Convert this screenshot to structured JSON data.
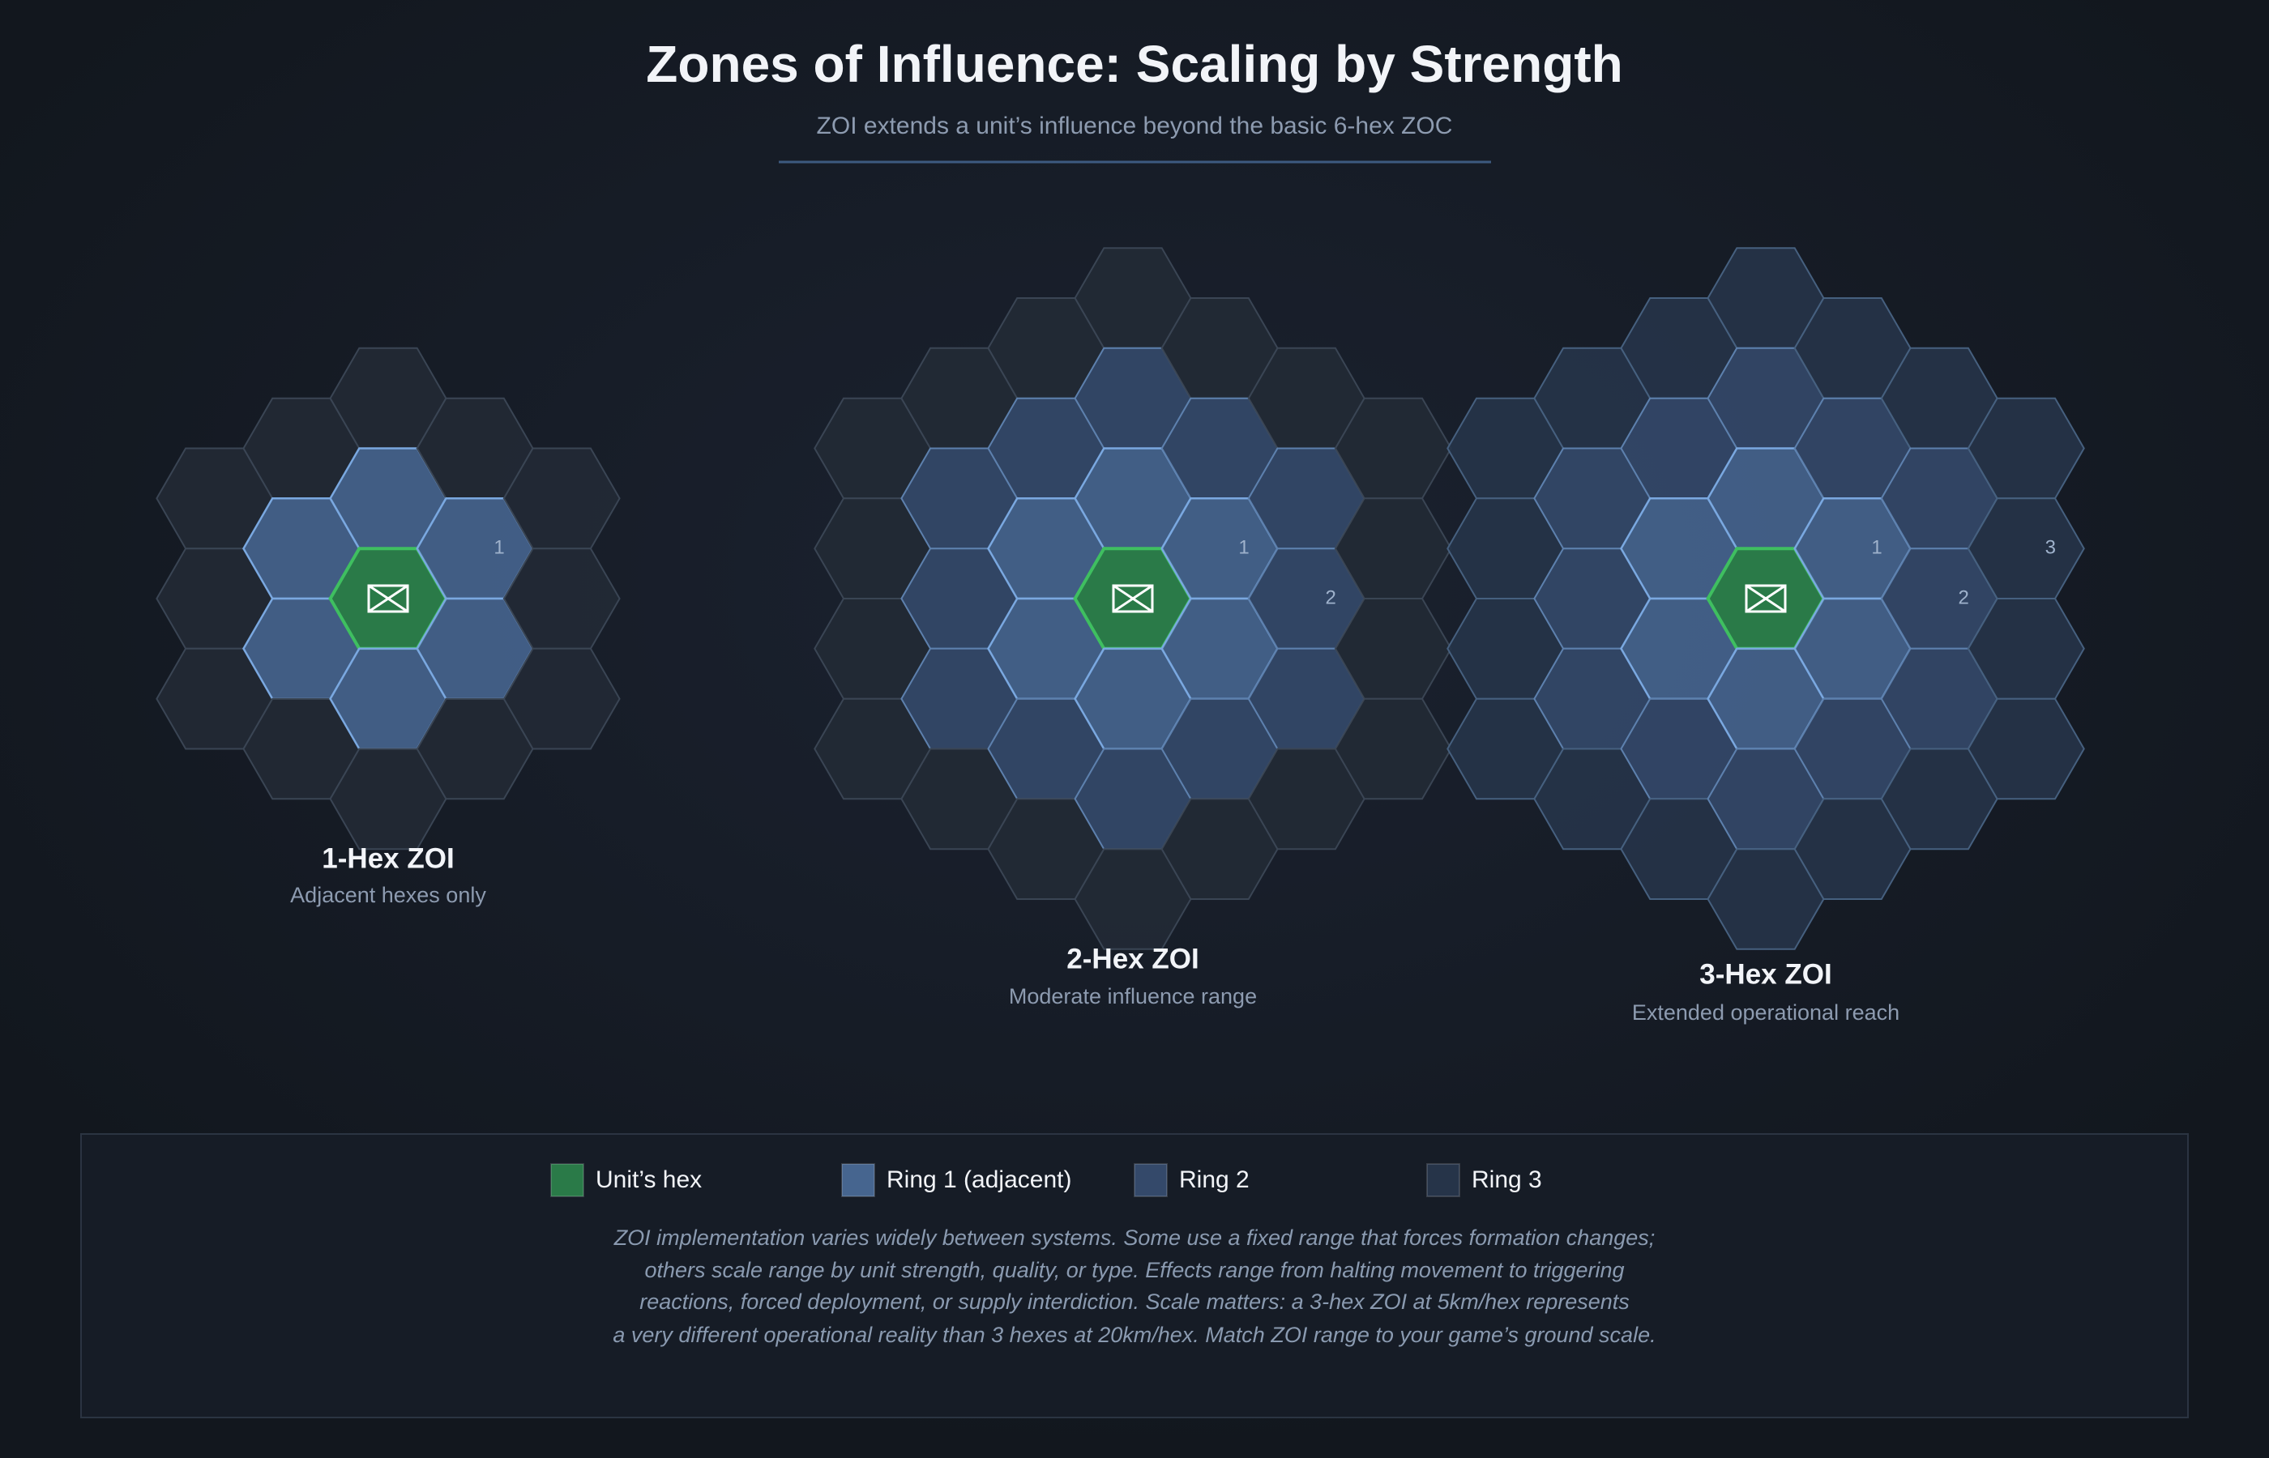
{
  "header": {
    "title": "Zones of Influence: Scaling by Strength",
    "subtitle": "ZOI extends a unit’s influence beyond the basic 6-hex ZOC"
  },
  "panels": [
    {
      "label": "1-Hex ZOI",
      "sublabel": "Adjacent hexes only",
      "ring_labels": [
        "1"
      ]
    },
    {
      "label": "2-Hex ZOI",
      "sublabel": "Moderate influence range",
      "ring_labels": [
        "1",
        "2"
      ]
    },
    {
      "label": "3-Hex ZOI",
      "sublabel": "Extended operational reach",
      "ring_labels": [
        "1",
        "2",
        "3"
      ]
    }
  ],
  "legend": [
    {
      "label": "Unit’s hex",
      "color": "#2a7a48"
    },
    {
      "label": "Ring 1 (adjacent)",
      "color": "#46658f"
    },
    {
      "label": "Ring 2",
      "color": "#34496a"
    },
    {
      "label": "Ring 3",
      "color": "#263449"
    }
  ],
  "note": [
    "ZOI implementation varies widely between systems. Some use a fixed range that forces formation changes;",
    "others scale range by unit strength, quality, or type. Effects range from halting movement to triggering",
    "reactions, forced deployment, or supply interdiction. Scale matters: a 3-hex ZOI at 5km/hex represents",
    "a very different operational reality than 3 hexes at 20km/hex. Match ZOI range to your game’s ground scale."
  ]
}
